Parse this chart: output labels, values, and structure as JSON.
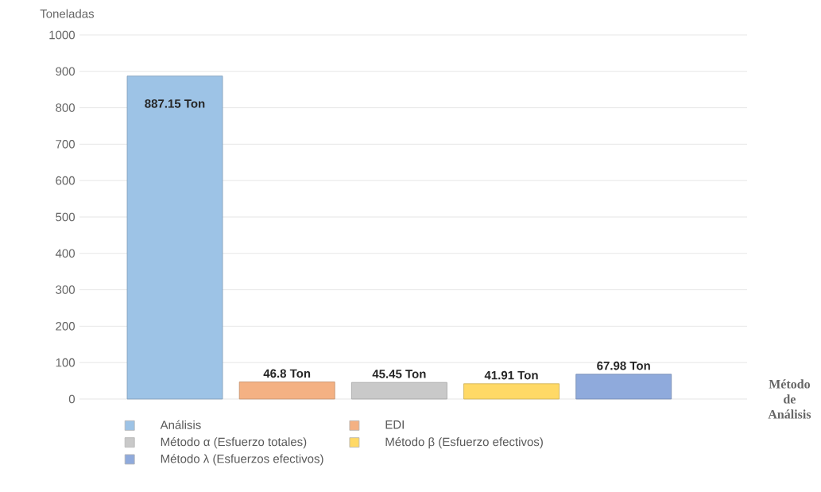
{
  "chart_data": {
    "type": "bar",
    "ylabel": "Toneladas",
    "xlabel": "Método de Análisis",
    "categories": [
      null,
      null,
      null,
      null,
      null
    ],
    "series": [
      {
        "name": "Análisis",
        "color": "#9dc3e6",
        "values": [
          887.15,
          null,
          null,
          null,
          null
        ],
        "value_labels": [
          "887.15 Ton",
          null,
          null,
          null,
          null
        ]
      },
      {
        "name": "EDI",
        "color": "#f4b183",
        "values": [
          null,
          46.8,
          null,
          null,
          null
        ],
        "value_labels": [
          null,
          "46.8 Ton",
          null,
          null,
          null
        ]
      },
      {
        "name": "Método α (Esfuerzo totales)",
        "color": "#c9c9c9",
        "values": [
          null,
          null,
          45.45,
          null,
          null
        ],
        "value_labels": [
          null,
          null,
          "45.45 Ton",
          null,
          null
        ]
      },
      {
        "name": "Método β (Esfuerzo efectivos)",
        "color": "#ffd966",
        "values": [
          null,
          null,
          null,
          41.91,
          null
        ],
        "value_labels": [
          null,
          null,
          null,
          "41.91 Ton",
          null
        ]
      },
      {
        "name": "Método λ (Esfuerzos efectivos)",
        "color": "#8faadc",
        "values": [
          null,
          null,
          null,
          null,
          67.98
        ],
        "value_labels": [
          null,
          null,
          null,
          null,
          "67.98 Ton"
        ]
      }
    ],
    "ylim": [
      0,
      1000
    ],
    "yticks": [
      0,
      100,
      200,
      300,
      400,
      500,
      600,
      700,
      800,
      900,
      1000
    ],
    "grid": "y",
    "legend": "bottom"
  }
}
